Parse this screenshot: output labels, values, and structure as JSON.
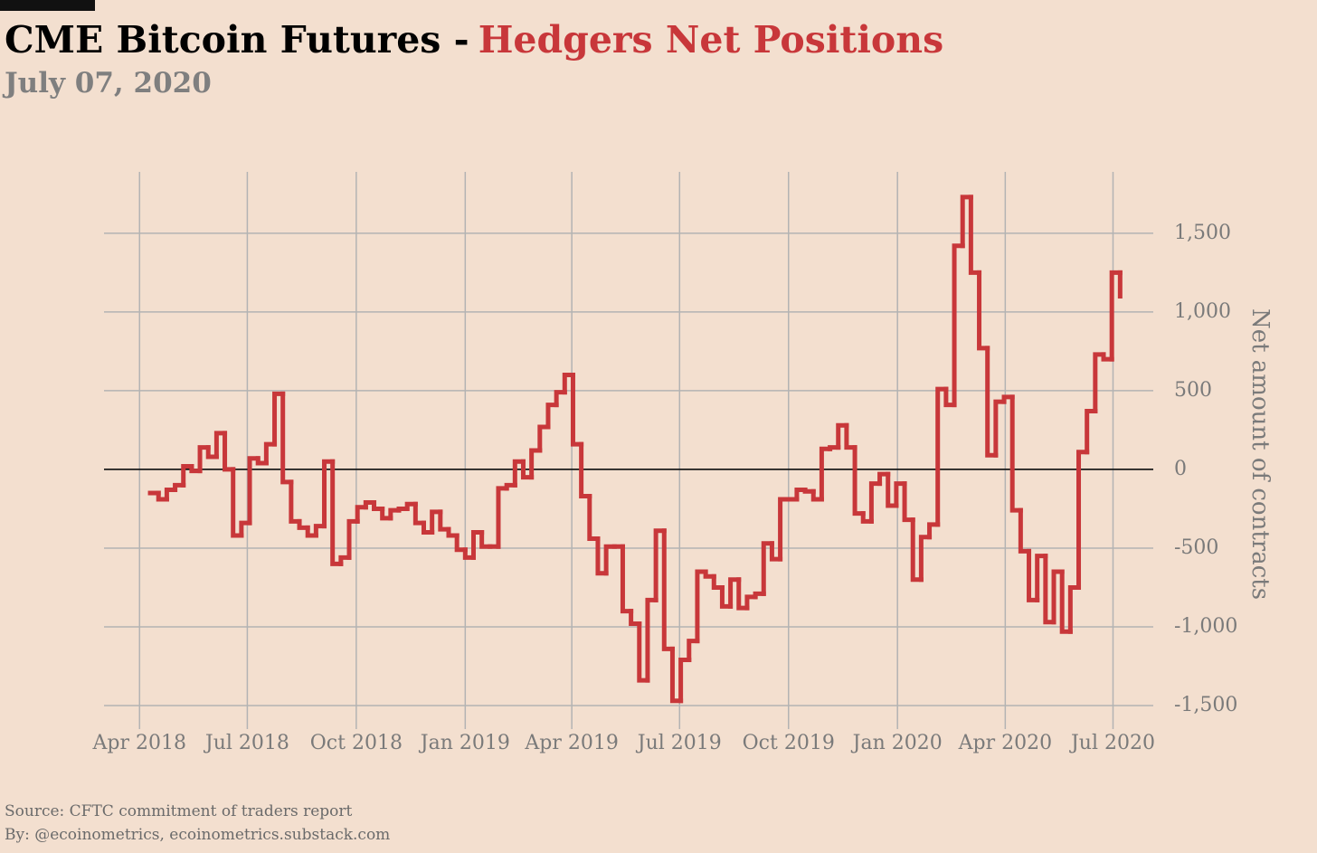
{
  "chart_data": {
    "type": "step",
    "title": "CME Bitcoin Futures -",
    "title_highlight": "Hedgers Net Positions",
    "subtitle": "July 07, 2020",
    "y_label": "Net amount of contracts",
    "source": "Source: CFTC commitment of traders report",
    "credit": "By: @ecoinometrics, ecoinometrics.substack.com",
    "x": [
      "2018-04-10",
      "2018-04-17",
      "2018-04-24",
      "2018-05-01",
      "2018-05-08",
      "2018-05-15",
      "2018-05-22",
      "2018-05-29",
      "2018-06-05",
      "2018-06-12",
      "2018-06-19",
      "2018-06-26",
      "2018-07-03",
      "2018-07-10",
      "2018-07-17",
      "2018-07-24",
      "2018-07-31",
      "2018-08-07",
      "2018-08-14",
      "2018-08-21",
      "2018-08-28",
      "2018-09-04",
      "2018-09-11",
      "2018-09-18",
      "2018-09-25",
      "2018-10-02",
      "2018-10-09",
      "2018-10-16",
      "2018-10-23",
      "2018-10-30",
      "2018-11-06",
      "2018-11-13",
      "2018-11-20",
      "2018-11-27",
      "2018-12-04",
      "2018-12-11",
      "2018-12-18",
      "2018-12-25",
      "2019-01-01",
      "2019-01-08",
      "2019-01-15",
      "2019-01-22",
      "2019-01-29",
      "2019-02-05",
      "2019-02-12",
      "2019-02-19",
      "2019-02-26",
      "2019-03-05",
      "2019-03-12",
      "2019-03-19",
      "2019-03-26",
      "2019-04-02",
      "2019-04-09",
      "2019-04-16",
      "2019-04-23",
      "2019-04-30",
      "2019-05-07",
      "2019-05-14",
      "2019-05-21",
      "2019-05-28",
      "2019-06-04",
      "2019-06-11",
      "2019-06-18",
      "2019-06-25",
      "2019-07-02",
      "2019-07-09",
      "2019-07-16",
      "2019-07-23",
      "2019-07-30",
      "2019-08-06",
      "2019-08-13",
      "2019-08-20",
      "2019-08-27",
      "2019-09-03",
      "2019-09-10",
      "2019-09-17",
      "2019-09-24",
      "2019-10-01",
      "2019-10-08",
      "2019-10-15",
      "2019-10-22",
      "2019-10-29",
      "2019-11-05",
      "2019-11-12",
      "2019-11-19",
      "2019-11-26",
      "2019-12-03",
      "2019-12-10",
      "2019-12-17",
      "2019-12-24",
      "2019-12-31",
      "2020-01-07",
      "2020-01-14",
      "2020-01-21",
      "2020-01-28",
      "2020-02-04",
      "2020-02-11",
      "2020-02-18",
      "2020-02-25",
      "2020-03-03",
      "2020-03-10",
      "2020-03-17",
      "2020-03-24",
      "2020-03-31",
      "2020-04-07",
      "2020-04-14",
      "2020-04-21",
      "2020-04-28",
      "2020-05-05",
      "2020-05-12",
      "2020-05-19",
      "2020-05-26",
      "2020-06-02",
      "2020-06-09",
      "2020-06-16",
      "2020-06-23",
      "2020-06-30",
      "2020-07-07"
    ],
    "series": [
      {
        "name": "Hedgers Net Positions",
        "color": "#c8373a",
        "values": [
          -150,
          -190,
          -130,
          -100,
          20,
          -10,
          140,
          80,
          230,
          0,
          -420,
          -340,
          70,
          40,
          160,
          480,
          -80,
          -330,
          -370,
          -420,
          -360,
          50,
          -600,
          -560,
          -330,
          -240,
          -210,
          -250,
          -310,
          -260,
          -250,
          -220,
          -340,
          -400,
          -270,
          -380,
          -420,
          -510,
          -560,
          -400,
          -490,
          -490,
          -120,
          -100,
          50,
          -50,
          120,
          270,
          410,
          490,
          600,
          160,
          -170,
          -440,
          -660,
          -490,
          -490,
          -900,
          -980,
          -1340,
          -830,
          -390,
          -1140,
          -1470,
          -1210,
          -1090,
          -650,
          -680,
          -750,
          -870,
          -700,
          -880,
          -810,
          -790,
          -470,
          -570,
          -190,
          -190,
          -130,
          -140,
          -190,
          130,
          140,
          280,
          140,
          -280,
          -330,
          -90,
          -30,
          -230,
          -90,
          -320,
          -700,
          -430,
          -350,
          510,
          410,
          1420,
          1730,
          1250,
          770,
          90,
          430,
          460,
          -260,
          -520,
          -830,
          -550,
          -970,
          -650,
          -1030,
          -750,
          110,
          370,
          730,
          700,
          1250,
          1100
        ]
      }
    ],
    "xlim": [
      "2018-03-02",
      "2020-08-04"
    ],
    "xticks": [
      {
        "value": "2018-04-01",
        "label": "Apr 2018"
      },
      {
        "value": "2018-07-01",
        "label": "Jul 2018"
      },
      {
        "value": "2018-10-01",
        "label": "Oct 2018"
      },
      {
        "value": "2019-01-01",
        "label": "Jan 2019"
      },
      {
        "value": "2019-04-01",
        "label": "Apr 2019"
      },
      {
        "value": "2019-07-01",
        "label": "Jul 2019"
      },
      {
        "value": "2019-10-01",
        "label": "Oct 2019"
      },
      {
        "value": "2020-01-01",
        "label": "Jan 2020"
      },
      {
        "value": "2020-04-01",
        "label": "Apr 2020"
      },
      {
        "value": "2020-07-01",
        "label": "Jul 2020"
      }
    ],
    "ylim": [
      -1615,
      1890
    ],
    "yticks": [
      {
        "value": -1500,
        "label": "-1,500"
      },
      {
        "value": -1000,
        "label": "-1,000"
      },
      -500,
      0,
      500,
      {
        "value": 1000,
        "label": "1,000"
      },
      {
        "value": 1500,
        "label": "1,500"
      }
    ],
    "grid": true,
    "zero_line": true
  }
}
